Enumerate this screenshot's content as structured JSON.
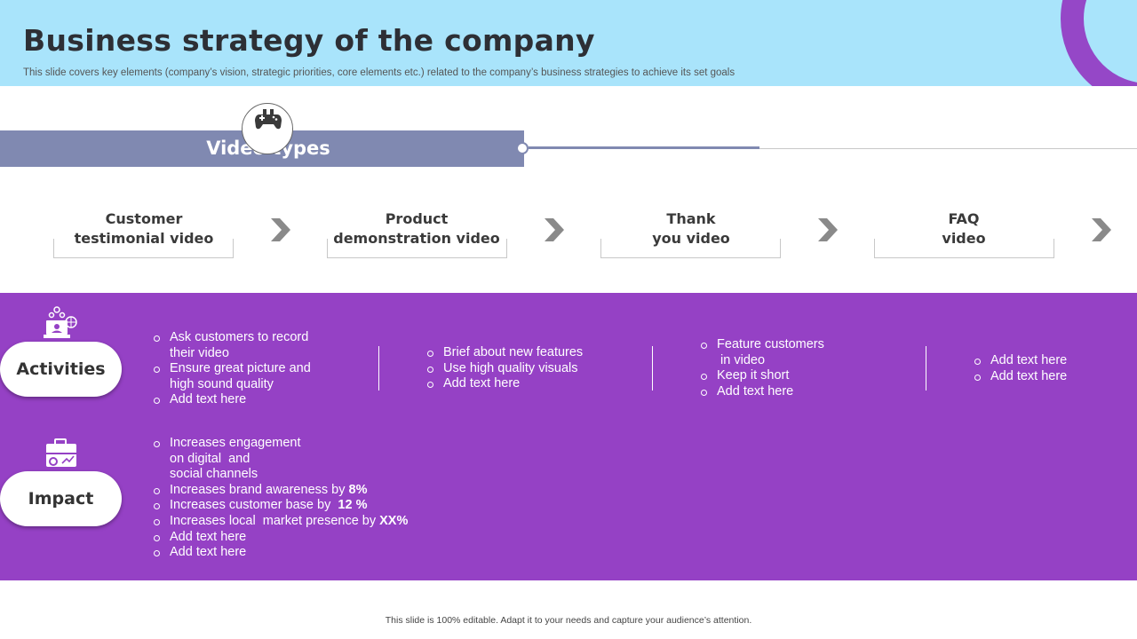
{
  "header": {
    "title": "Business strategy of the company",
    "subtitle": "This slide covers key elements (company’s vision, strategic priorities, core elements etc.) related to the company’s business strategies to achieve its set goals",
    "accent_color": "#a9e4fb",
    "ring_color": "#9547c7"
  },
  "video_types": {
    "label": "Video types",
    "icon": "gamepad-icon",
    "bar_color": "#8089b1",
    "items": [
      {
        "line1": "Customer",
        "line2": "testimonial video"
      },
      {
        "line1": "Product",
        "line2": "demonstration video"
      },
      {
        "line1": "Thank",
        "line2": "you video"
      },
      {
        "line1": "FAQ",
        "line2": "video"
      }
    ]
  },
  "sections": {
    "panel_color": "#9541c5",
    "activities": {
      "label": "Activities",
      "icon": "team-laptop-globe-icon",
      "columns": [
        [
          {
            "text": "Ask customers to record",
            "cont": "their video"
          },
          {
            "text": "Ensure great picture and",
            "cont": "high sound quality"
          },
          {
            "text": "Add text here"
          }
        ],
        [
          {
            "text": "Brief about new features"
          },
          {
            "text": "Use high quality visuals"
          },
          {
            "text": "Add text here"
          }
        ],
        [
          {
            "text": "Feature customers",
            "cont": " in video"
          },
          {
            "text": "Keep it short"
          },
          {
            "text": "Add text here"
          }
        ],
        [
          {
            "text": "Add text here"
          },
          {
            "text": "Add text here"
          }
        ]
      ]
    },
    "impact": {
      "label": "Impact",
      "icon": "briefcase-chart-icon",
      "items": [
        {
          "text": "Increases engagement",
          "cont1": "on digital  and",
          "cont2": "social channels"
        },
        {
          "text": "Increases brand awareness by ",
          "bold": "8%"
        },
        {
          "text": "Increases customer base by  ",
          "bold": "12 %"
        },
        {
          "text": "Increases local  market presence by ",
          "bold": "XX%"
        },
        {
          "text": "Add text here"
        },
        {
          "text": "Add text here"
        }
      ]
    }
  },
  "footer": {
    "text": "This slide is 100% editable. Adapt it to your needs and capture your audience’s attention."
  }
}
